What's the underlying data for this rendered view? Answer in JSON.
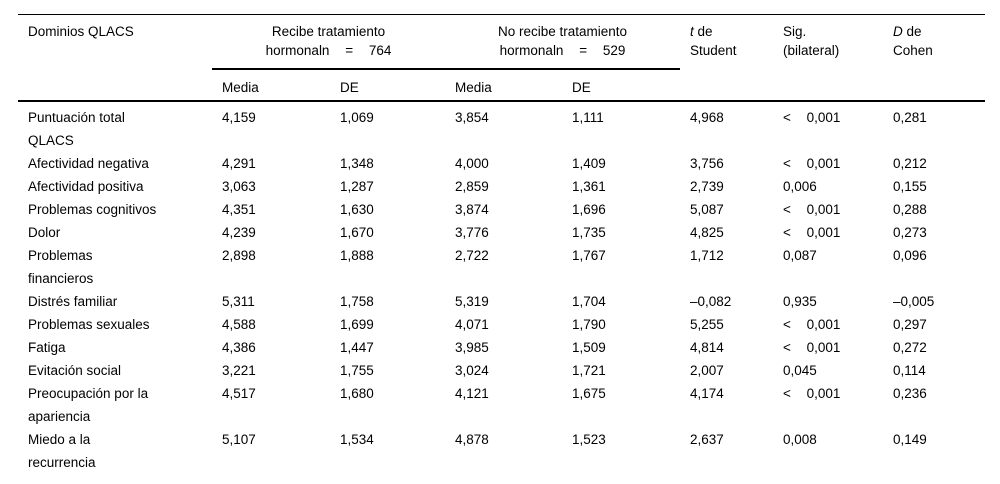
{
  "table": {
    "col_domain_header": "Dominios QLACS",
    "group_treated": {
      "line1": "Recibe tratamiento",
      "line2": "hormonaln = 764"
    },
    "group_untreated": {
      "line1": "No recibe tratamiento",
      "line2": "hormonaln = 529"
    },
    "col_t": {
      "italic": "t",
      "line1_rest": " de",
      "line2": "Student"
    },
    "col_sig": {
      "line1": "Sig.",
      "line2": "(bilateral)"
    },
    "col_d": {
      "italic": "D",
      "line1_rest": " de",
      "line2": "Cohen"
    },
    "subheaders": {
      "media_ht": "Media",
      "de_ht": "DE",
      "media_nht": "Media",
      "de_nht": "DE"
    },
    "rows": [
      {
        "domain": [
          "Puntuación total",
          "QLACS"
        ],
        "media_ht": "4,159",
        "de_ht": "1,069",
        "media_nht": "3,854",
        "de_nht": "1,111",
        "t": "4,968",
        "sig": "< 0,001",
        "d": "0,281"
      },
      {
        "domain": [
          "Afectividad negativa"
        ],
        "media_ht": "4,291",
        "de_ht": "1,348",
        "media_nht": "4,000",
        "de_nht": "1,409",
        "t": "3,756",
        "sig": "< 0,001",
        "d": "0,212"
      },
      {
        "domain": [
          "Afectividad positiva"
        ],
        "media_ht": "3,063",
        "de_ht": "1,287",
        "media_nht": "2,859",
        "de_nht": "1,361",
        "t": "2,739",
        "sig": "0,006",
        "d": "0,155"
      },
      {
        "domain": [
          "Problemas cognitivos"
        ],
        "media_ht": "4,351",
        "de_ht": "1,630",
        "media_nht": "3,874",
        "de_nht": "1,696",
        "t": "5,087",
        "sig": "< 0,001",
        "d": "0,288"
      },
      {
        "domain": [
          "Dolor"
        ],
        "media_ht": "4,239",
        "de_ht": "1,670",
        "media_nht": "3,776",
        "de_nht": "1,735",
        "t": "4,825",
        "sig": "< 0,001",
        "d": "0,273"
      },
      {
        "domain": [
          "Problemas",
          "financieros"
        ],
        "media_ht": "2,898",
        "de_ht": "1,888",
        "media_nht": "2,722",
        "de_nht": "1,767",
        "t": "1,712",
        "sig": "0,087",
        "d": "0,096"
      },
      {
        "domain": [
          "Distrés familiar"
        ],
        "media_ht": "5,311",
        "de_ht": "1,758",
        "media_nht": "5,319",
        "de_nht": "1,704",
        "t": "–0,082",
        "sig": "0,935",
        "d": "–0,005"
      },
      {
        "domain": [
          "Problemas sexuales"
        ],
        "media_ht": "4,588",
        "de_ht": "1,699",
        "media_nht": "4,071",
        "de_nht": "1,790",
        "t": "5,255",
        "sig": "< 0,001",
        "d": "0,297"
      },
      {
        "domain": [
          "Fatiga"
        ],
        "media_ht": "4,386",
        "de_ht": "1,447",
        "media_nht": "3,985",
        "de_nht": "1,509",
        "t": "4,814",
        "sig": "< 0,001",
        "d": "0,272"
      },
      {
        "domain": [
          "Evitación social"
        ],
        "media_ht": "3,221",
        "de_ht": "1,755",
        "media_nht": "3,024",
        "de_nht": "1,721",
        "t": "2,007",
        "sig": "0,045",
        "d": "0,114"
      },
      {
        "domain": [
          "Preocupación por la",
          "apariencia"
        ],
        "media_ht": "4,517",
        "de_ht": "1,680",
        "media_nht": "4,121",
        "de_nht": "1,675",
        "t": "4,174",
        "sig": "< 0,001",
        "d": "0,236"
      },
      {
        "domain": [
          "Miedo a la",
          "recurrencia"
        ],
        "media_ht": "5,107",
        "de_ht": "1,534",
        "media_nht": "4,878",
        "de_nht": "1,523",
        "t": "2,637",
        "sig": "0,008",
        "d": "0,149"
      }
    ]
  }
}
